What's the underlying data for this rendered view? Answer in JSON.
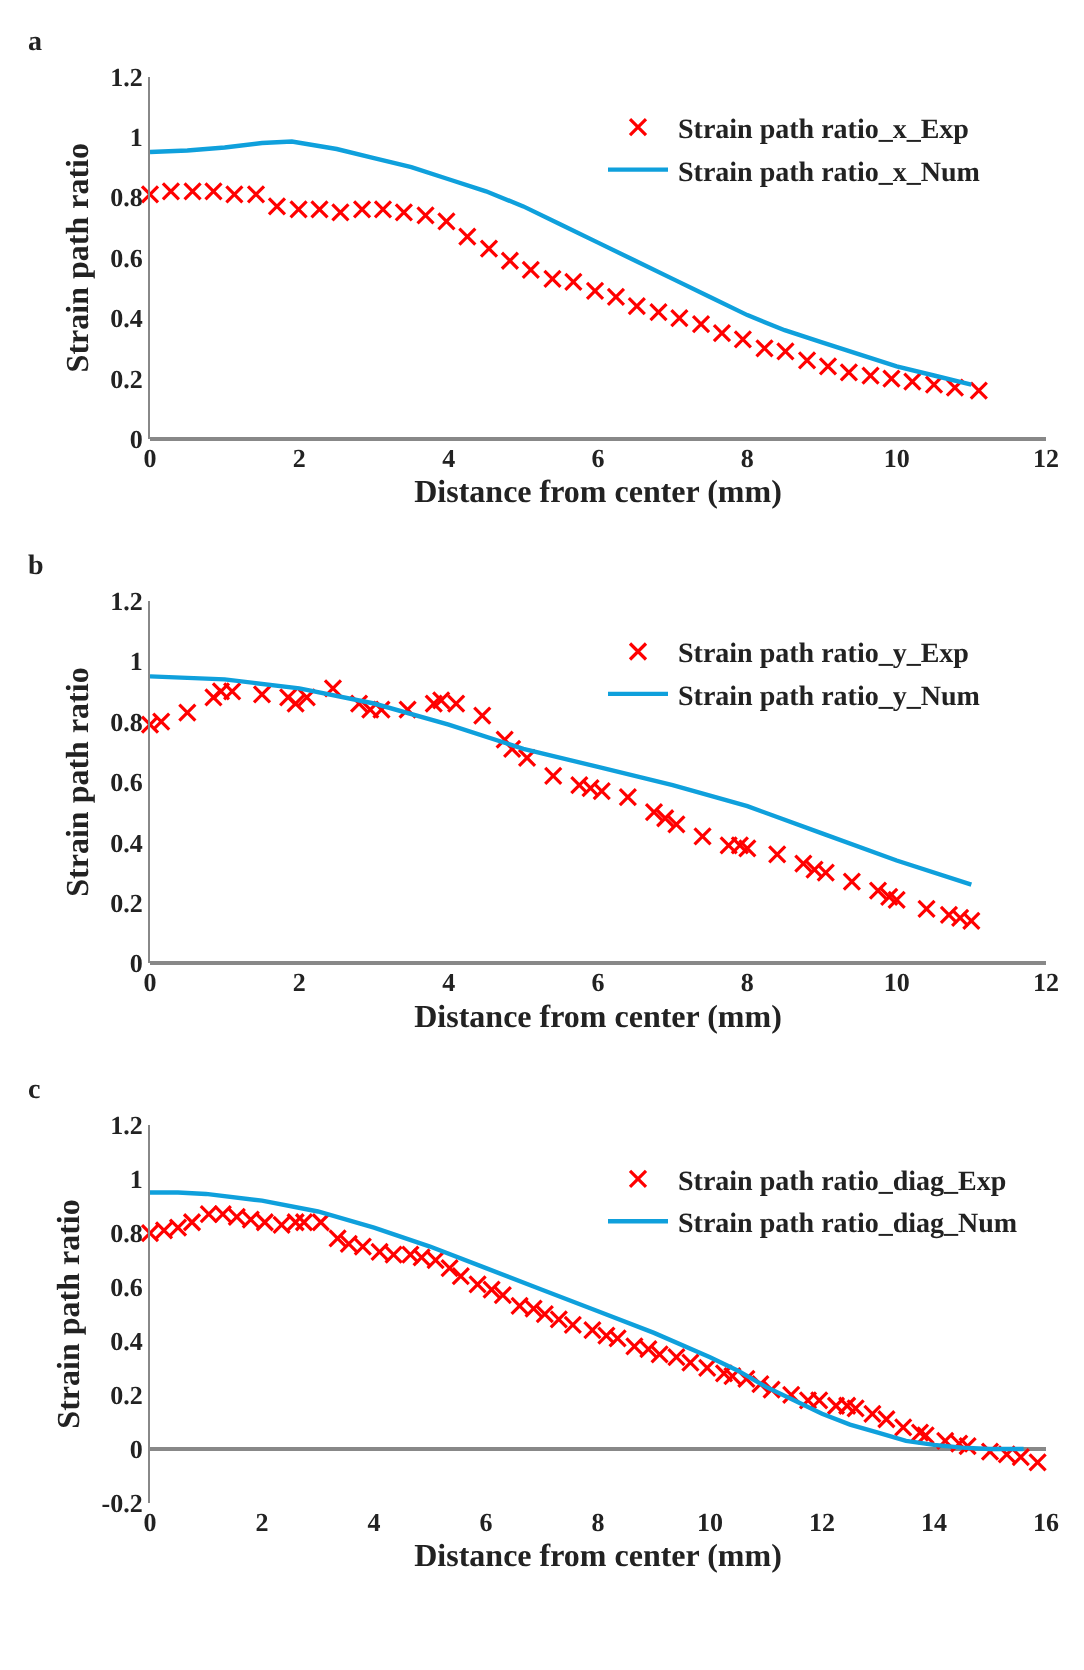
{
  "chart_data": [
    {
      "type": "scatter",
      "title": "a",
      "xlabel": "Distance from center (mm)",
      "ylabel": "Strain path ratio",
      "xlim": [
        0,
        12
      ],
      "xticks": [
        0,
        2,
        4,
        6,
        8,
        10,
        12
      ],
      "ylim": [
        0,
        1.2
      ],
      "yticks": [
        0,
        0.2,
        0.4,
        0.6,
        0.8,
        1,
        1.2
      ],
      "legend": "right",
      "series": [
        {
          "name": "Strain path ratio_x_Exp",
          "marker": "cross",
          "color": "#ff0000",
          "x": [
            0,
            0.28,
            0.57,
            0.85,
            1.13,
            1.42,
            1.7,
            1.99,
            2.27,
            2.55,
            2.84,
            3.12,
            3.4,
            3.69,
            3.97,
            4.25,
            4.54,
            4.82,
            5.1,
            5.39,
            5.67,
            5.96,
            6.24,
            6.52,
            6.81,
            7.09,
            7.38,
            7.66,
            7.94,
            8.23,
            8.51,
            8.8,
            9.08,
            9.36,
            9.65,
            9.93,
            10.21,
            10.5,
            10.78,
            11.1
          ],
          "values": [
            0.81,
            0.82,
            0.82,
            0.82,
            0.81,
            0.81,
            0.77,
            0.76,
            0.76,
            0.75,
            0.76,
            0.76,
            0.75,
            0.74,
            0.72,
            0.67,
            0.63,
            0.59,
            0.56,
            0.53,
            0.52,
            0.49,
            0.47,
            0.44,
            0.42,
            0.4,
            0.38,
            0.35,
            0.33,
            0.3,
            0.29,
            0.26,
            0.24,
            0.22,
            0.21,
            0.2,
            0.19,
            0.18,
            0.17,
            0.16
          ]
        },
        {
          "name": "Strain path ratio_x_Num",
          "type": "line",
          "marker": "none",
          "line_style": "solid",
          "color": "#0fa0dc",
          "x": [
            0,
            0.5,
            1,
            1.5,
            1.9,
            2.5,
            3,
            3.5,
            4,
            4.5,
            5,
            5.5,
            6,
            6.5,
            7,
            7.5,
            8,
            8.5,
            9,
            9.5,
            10,
            10.5,
            11
          ],
          "values": [
            0.95,
            0.955,
            0.965,
            0.98,
            0.985,
            0.96,
            0.93,
            0.9,
            0.86,
            0.82,
            0.77,
            0.71,
            0.65,
            0.59,
            0.53,
            0.47,
            0.41,
            0.36,
            0.32,
            0.28,
            0.24,
            0.21,
            0.18
          ]
        }
      ]
    },
    {
      "type": "scatter",
      "title": "b",
      "xlabel": "Distance from center (mm)",
      "ylabel": "Strain path ratio",
      "xlim": [
        0,
        12
      ],
      "xticks": [
        0,
        2,
        4,
        6,
        8,
        10,
        12
      ],
      "ylim": [
        0,
        1.2
      ],
      "yticks": [
        0,
        0.2,
        0.4,
        0.6,
        0.8,
        1,
        1.2
      ],
      "legend": "right",
      "series": [
        {
          "name": "Strain path ratio_y_Exp",
          "marker": "cross",
          "color": "#ff0000",
          "x": [
            0,
            0.15,
            0.5,
            0.85,
            0.95,
            1.1,
            1.5,
            1.85,
            1.95,
            2.1,
            2.45,
            2.8,
            2.95,
            3.1,
            3.45,
            3.8,
            3.9,
            4.1,
            4.45,
            4.75,
            4.85,
            5.05,
            5.4,
            5.75,
            5.9,
            6.05,
            6.4,
            6.75,
            6.9,
            7.05,
            7.4,
            7.75,
            7.9,
            8.0,
            8.4,
            8.75,
            8.9,
            9.05,
            9.4,
            9.75,
            9.9,
            10.0,
            10.4,
            10.7,
            10.85,
            11
          ],
          "values": [
            0.79,
            0.8,
            0.83,
            0.88,
            0.9,
            0.9,
            0.89,
            0.88,
            0.86,
            0.88,
            0.91,
            0.86,
            0.84,
            0.84,
            0.84,
            0.86,
            0.87,
            0.86,
            0.82,
            0.74,
            0.71,
            0.68,
            0.62,
            0.59,
            0.58,
            0.57,
            0.55,
            0.5,
            0.48,
            0.46,
            0.42,
            0.39,
            0.39,
            0.38,
            0.36,
            0.33,
            0.31,
            0.3,
            0.27,
            0.24,
            0.22,
            0.21,
            0.18,
            0.16,
            0.15,
            0.14
          ]
        },
        {
          "name": "Strain path ratio_y_Num",
          "type": "line",
          "marker": "none",
          "line_style": "solid",
          "color": "#0fa0dc",
          "x": [
            0,
            1,
            2,
            3,
            4,
            5,
            6,
            7,
            8,
            9,
            10,
            11
          ],
          "values": [
            0.95,
            0.94,
            0.91,
            0.86,
            0.79,
            0.71,
            0.65,
            0.59,
            0.52,
            0.43,
            0.34,
            0.26
          ]
        }
      ]
    },
    {
      "type": "scatter",
      "title": "c",
      "xlabel": "Distance from center (mm)",
      "ylabel": "Strain path ratio",
      "xlim": [
        0,
        16
      ],
      "xticks": [
        0,
        2,
        4,
        6,
        8,
        10,
        12,
        14,
        16
      ],
      "ylim": [
        -0.2,
        1.2
      ],
      "yticks": [
        -0.2,
        0,
        0.2,
        0.4,
        0.6,
        0.8,
        1,
        1.2
      ],
      "legend": "right",
      "series": [
        {
          "name": "Strain path ratio_diag_Exp",
          "marker": "cross",
          "color": "#ff0000",
          "x": [
            0,
            0.25,
            0.5,
            0.75,
            1.05,
            1.3,
            1.55,
            1.8,
            2.05,
            2.35,
            2.6,
            2.75,
            3.05,
            3.35,
            3.55,
            3.8,
            4.1,
            4.35,
            4.65,
            4.85,
            5.1,
            5.35,
            5.55,
            5.85,
            6.1,
            6.3,
            6.6,
            6.85,
            7.05,
            7.3,
            7.55,
            7.9,
            8.15,
            8.35,
            8.65,
            8.9,
            9.1,
            9.4,
            9.65,
            9.95,
            10.25,
            10.4,
            10.65,
            10.9,
            11.1,
            11.45,
            11.75,
            11.95,
            12.25,
            12.45,
            12.6,
            12.9,
            13.15,
            13.45,
            13.75,
            13.85,
            14.2,
            14.45,
            14.6,
            15.0,
            15.3,
            15.55,
            15.85
          ],
          "values": [
            0.8,
            0.81,
            0.82,
            0.84,
            0.87,
            0.87,
            0.86,
            0.85,
            0.84,
            0.83,
            0.84,
            0.84,
            0.84,
            0.78,
            0.76,
            0.75,
            0.73,
            0.72,
            0.72,
            0.71,
            0.7,
            0.67,
            0.64,
            0.61,
            0.59,
            0.57,
            0.53,
            0.52,
            0.5,
            0.48,
            0.46,
            0.44,
            0.42,
            0.41,
            0.38,
            0.37,
            0.35,
            0.34,
            0.32,
            0.3,
            0.28,
            0.27,
            0.26,
            0.24,
            0.22,
            0.2,
            0.18,
            0.18,
            0.16,
            0.16,
            0.15,
            0.13,
            0.11,
            0.08,
            0.06,
            0.05,
            0.03,
            0.02,
            0.01,
            -0.01,
            -0.02,
            -0.03,
            -0.05
          ]
        },
        {
          "name": "Strain path ratio_diag_Num",
          "type": "line",
          "marker": "none",
          "line_style": "solid",
          "color": "#0fa0dc",
          "x": [
            0,
            0.5,
            1,
            2,
            3,
            4,
            5,
            6,
            7,
            8,
            9,
            10,
            10.5,
            11,
            11.5,
            12,
            12.5,
            13,
            13.5,
            14,
            14.5,
            15,
            15.6
          ],
          "values": [
            0.95,
            0.95,
            0.945,
            0.92,
            0.88,
            0.82,
            0.75,
            0.67,
            0.59,
            0.51,
            0.43,
            0.34,
            0.29,
            0.23,
            0.18,
            0.13,
            0.09,
            0.06,
            0.03,
            0.015,
            0.005,
            0.0,
            0.0
          ]
        }
      ]
    }
  ]
}
